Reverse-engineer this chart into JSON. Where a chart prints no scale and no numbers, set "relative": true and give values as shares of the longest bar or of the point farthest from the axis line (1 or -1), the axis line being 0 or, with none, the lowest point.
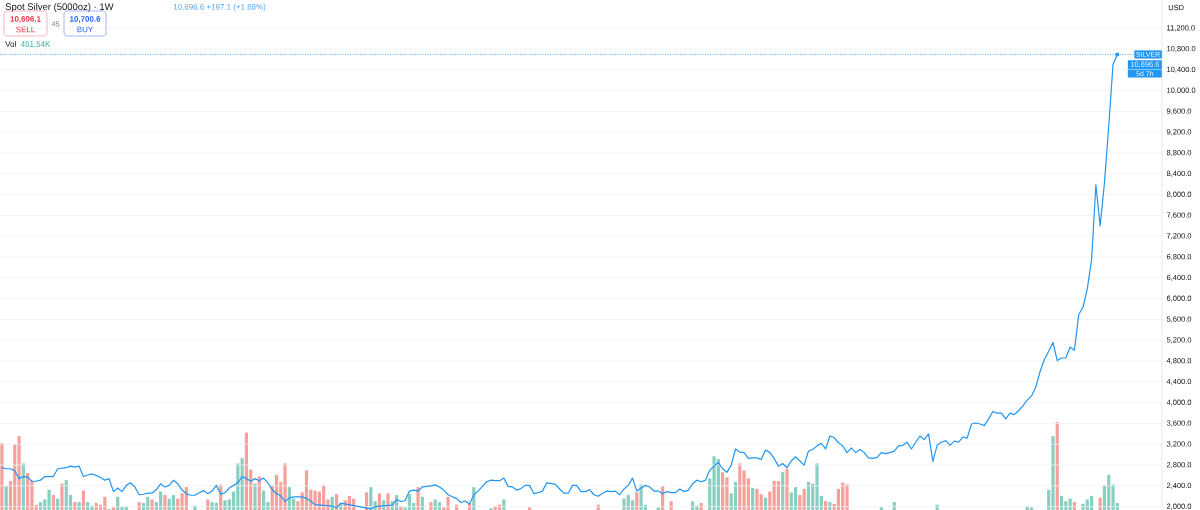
{
  "chart_data": [
    {
      "type": "line",
      "title": "Spot Silver (5000oz) · 1W",
      "subtitle": "10,696.6 +197.1 (+1.88%)",
      "annotations": [
        {
          "text": "10,696.6",
          "y": 10696.6
        },
        "5d 7h",
        "10,696.1",
        "SELL",
        "45",
        "10,700.6",
        "BUY",
        "USD"
      ],
      "color": "#2196f3",
      "categories": [
        null,
        null,
        null,
        null,
        null,
        null,
        null,
        null,
        null,
        null,
        null,
        null,
        null,
        null,
        null,
        null,
        null,
        null,
        null,
        null,
        null,
        null,
        null,
        null,
        null,
        null,
        null,
        null,
        null,
        null,
        null,
        null,
        null,
        null,
        null,
        null,
        null,
        null,
        null,
        null,
        null,
        null,
        null,
        null,
        null,
        null,
        null,
        null,
        null,
        null,
        null,
        null,
        null,
        null,
        null,
        null,
        null,
        null,
        null,
        null,
        null,
        null,
        null,
        null,
        null,
        null,
        null,
        null,
        null,
        null,
        null,
        null,
        null,
        null,
        null,
        null,
        null,
        null,
        null,
        null,
        null,
        null,
        null,
        null,
        null,
        null,
        null,
        null,
        null,
        null,
        null,
        null,
        null,
        null,
        null,
        null,
        null,
        null,
        null,
        null,
        null,
        null,
        null,
        null,
        null,
        null,
        null,
        null,
        null,
        null,
        null,
        null,
        null,
        null,
        null,
        null,
        null,
        null,
        null,
        null,
        null,
        null,
        null,
        null,
        null,
        null,
        null,
        null,
        null,
        null,
        null,
        null,
        null,
        null,
        null,
        null,
        null,
        null,
        null,
        null,
        null,
        null,
        null,
        null,
        null,
        null,
        null,
        null,
        null,
        null,
        null,
        null,
        null,
        null,
        null,
        null,
        null,
        null,
        null,
        null,
        null,
        null,
        null,
        null,
        null,
        null,
        null,
        null,
        null,
        null,
        null,
        null,
        null,
        null,
        null,
        null,
        null,
        null,
        null,
        null,
        null,
        null,
        null,
        null,
        null,
        null,
        null,
        null,
        null,
        null,
        null,
        null,
        null,
        null,
        null,
        null,
        null,
        null,
        null,
        null,
        null,
        null,
        null,
        null,
        null,
        null,
        null,
        null,
        null,
        null,
        null,
        null,
        null,
        null,
        null,
        null,
        null,
        null,
        null,
        null,
        null,
        null,
        null,
        null,
        null,
        null,
        null,
        null,
        null,
        null,
        null,
        null,
        null,
        null,
        null,
        null,
        null,
        null,
        null,
        null,
        null,
        null,
        null,
        null,
        null,
        null,
        null,
        null,
        null,
        null,
        null,
        null,
        null,
        null,
        null,
        null,
        null,
        null,
        null,
        null,
        null
      ],
      "values": [
        2750,
        2730,
        2730,
        2690,
        2540,
        2580,
        2570,
        2490,
        2490,
        2510,
        2580,
        2580,
        2580,
        2730,
        2740,
        2750,
        2780,
        2760,
        2780,
        2580,
        2610,
        2630,
        2600,
        2560,
        2510,
        2540,
        2290,
        2360,
        2290,
        2410,
        2460,
        2380,
        2230,
        2240,
        2260,
        2260,
        2330,
        2440,
        2380,
        2410,
        2510,
        2440,
        2320,
        2250,
        2220,
        2220,
        2270,
        2310,
        2250,
        2300,
        2410,
        2240,
        2270,
        2360,
        2410,
        2460,
        2580,
        2540,
        2490,
        2540,
        2500,
        2550,
        2460,
        2330,
        2250,
        2210,
        2100,
        2170,
        2190,
        2190,
        2190,
        2160,
        2110,
        2040,
        null,
        null,
        null,
        2010,
        1980,
        2070,
        null,
        null,
        null,
        null,
        null,
        null,
        1960,
        2000,
        null,
        null,
        null,
        2030,
        2140,
        2100,
        2120,
        2300,
        2320,
        2300,
        2380,
        2390,
        2400,
        2420,
        2380,
        2320,
        2230,
        2190,
        2160,
        2080,
        2110,
        2050,
        2230,
        2300,
        2390,
        2480,
        2510,
        2500,
        2500,
        2550,
        2390,
        2380,
        2320,
        2350,
        2410,
        2410,
        2250,
        2270,
        2300,
        2460,
        2450,
        2430,
        2340,
        2260,
        2260,
        2410,
        2410,
        2290,
        2290,
        2330,
        2230,
        2200,
        2260,
        2300,
        2290,
        2300,
        2230,
        2340,
        2410,
        2550,
        2300,
        2360,
        2410,
        2380,
        2300,
        2300,
        2250,
        2290,
        2270,
        2270,
        2340,
        2290,
        2320,
        2440,
        2510,
        2480,
        2510,
        2700,
        2780,
        2850,
        2730,
        2660,
        2800,
        3110,
        3050,
        3040,
        2930,
        2940,
        2940,
        2910,
        3090,
        3040,
        2930,
        2780,
        2830,
        2750,
        2880,
        2960,
        2880,
        2800,
        3070,
        3100,
        3170,
        3220,
        3110,
        3360,
        3330,
        3230,
        3170,
        3040,
        3130,
        3040,
        3100,
        3040,
        2940,
        2930,
        2950,
        3040,
        3020,
        3040,
        3070,
        3170,
        3180,
        3240,
        3110,
        3240,
        3360,
        3290,
        3400,
        2870,
        3180,
        3240,
        3270,
        3180,
        3260,
        3240,
        3340,
        3320,
        3590,
        3610,
        3590,
        3560,
        3690,
        3830,
        3800,
        3800,
        3690,
        3800,
        3770,
        3850,
        3940,
        4050,
        4130,
        4300,
        4600,
        4830,
        4990,
        5160,
        4810,
        4860,
        4860,
        5070,
        5010,
        5690,
        5840,
        6190,
        6750,
        8190,
        7400,
        8230,
        9320,
        10510,
        10696.6
      ],
      "ylim": [
        1937,
        11744
      ],
      "yticks": [
        {
          "value": 2000,
          "label": "2,000.0"
        },
        {
          "value": 2400,
          "label": "2,400.0"
        },
        {
          "value": 2800,
          "label": "2,800.0"
        },
        {
          "value": 3200,
          "label": "3,200.0"
        },
        {
          "value": 3600,
          "label": "3,600.0"
        },
        {
          "value": 4000,
          "label": "4,000.0"
        },
        {
          "value": 4400,
          "label": "4,400.0"
        },
        {
          "value": 4800,
          "label": "4,800.0"
        },
        {
          "value": 5200,
          "label": "5,200.0"
        },
        {
          "value": 5600,
          "label": "5,600.0"
        },
        {
          "value": 6000,
          "label": "6,000.0"
        },
        {
          "value": 6400,
          "label": "6,400.0"
        },
        {
          "value": 6800,
          "label": "6,800.0"
        },
        {
          "value": 7200,
          "label": "7,200.0"
        },
        {
          "value": 7600,
          "label": "7,600.0"
        },
        {
          "value": 8000,
          "label": "8,000.0"
        },
        {
          "value": 8400,
          "label": "8,400.0"
        },
        {
          "value": 8800,
          "label": "8,800.0"
        },
        {
          "value": 9200,
          "label": "9,200.0"
        },
        {
          "value": 9600,
          "label": "9,600.0"
        },
        {
          "value": 10000,
          "label": "10,000.0"
        },
        {
          "value": 10400,
          "label": "10,400.0"
        },
        {
          "value": 10800,
          "label": "10,800.0"
        },
        {
          "value": 11200,
          "label": "11,200.0"
        }
      ],
      "grid": "y",
      "tick_labels": "y",
      "ref_lines": [
        {
          "axis": "y",
          "value": 10696.6,
          "label": "SILVER",
          "color": "#2196f3",
          "line_style": "dotted"
        }
      ]
    },
    {
      "type": "bar",
      "relative": true,
      "title": "Vol",
      "annotations": [
        "451.54K"
      ],
      "categories": [
        null,
        null,
        null,
        null,
        null,
        null,
        null,
        null,
        null,
        null,
        null,
        null,
        null,
        null,
        null,
        null,
        null,
        null,
        null,
        null,
        null,
        null,
        null,
        null,
        null,
        null,
        null,
        null,
        null,
        null,
        null,
        null,
        null,
        null,
        null,
        null,
        null,
        null,
        null,
        null,
        null,
        null,
        null,
        null,
        null,
        null,
        null,
        null,
        null,
        null,
        null,
        null,
        null,
        null,
        null,
        null,
        null,
        null,
        null,
        null,
        null,
        null,
        null,
        null,
        null,
        null,
        null,
        null,
        null,
        null,
        null,
        null,
        null,
        null,
        null,
        null,
        null,
        null,
        null,
        null,
        null,
        null,
        null,
        null,
        null,
        null,
        null,
        null,
        null,
        null,
        null,
        null,
        null,
        null,
        null,
        null,
        null,
        null,
        null,
        null,
        null,
        null,
        null,
        null,
        null,
        null,
        null,
        null,
        null,
        null,
        null,
        null,
        null,
        null,
        null,
        null,
        null,
        null,
        null,
        null,
        null,
        null,
        null,
        null,
        null,
        null,
        null,
        null,
        null,
        null,
        null,
        null,
        null,
        null,
        null,
        null,
        null,
        null,
        null,
        null,
        null,
        null,
        null,
        null,
        null,
        null,
        null,
        null,
        null,
        null,
        null,
        null,
        null,
        null,
        null,
        null,
        null,
        null,
        null,
        null,
        null,
        null,
        null,
        null,
        null,
        null,
        null,
        null,
        null,
        null,
        null,
        null,
        null,
        null,
        null,
        null,
        null,
        null,
        null,
        null,
        null,
        null,
        null,
        null,
        null,
        null,
        null,
        null,
        null,
        null,
        null,
        null,
        null,
        null,
        null,
        null,
        null,
        null,
        null,
        null,
        null,
        null,
        null,
        null,
        null,
        null,
        null,
        null,
        null,
        null,
        null,
        null,
        null,
        null,
        null,
        null,
        null,
        null,
        null,
        null,
        null,
        null,
        null,
        null,
        null,
        null,
        null,
        null,
        null,
        null,
        null,
        null,
        null,
        null,
        null,
        null,
        null,
        null,
        null,
        null,
        null,
        null,
        null,
        null,
        null,
        null,
        null,
        null,
        null,
        null,
        null,
        null,
        null,
        null,
        null,
        null,
        null,
        null,
        null,
        null,
        null
      ],
      "values": [
        0.76,
        0.27,
        0.33,
        0.75,
        0.84,
        0.53,
        0.42,
        0.33,
        0.06,
        0.09,
        0.12,
        0.23,
        0.17,
        0.13,
        0.3,
        0.34,
        0.17,
        0.09,
        0.09,
        0.22,
        0.09,
        0.05,
        0.08,
        0.06,
        0.15,
        0.01,
        0.03,
        0.15,
        0.04,
        0.04,
        null,
        null,
        0.09,
        0.08,
        0.15,
        0.12,
        0.09,
        0.21,
        0.17,
        0.13,
        0.17,
        0.13,
        0.19,
        0.26,
        null,
        0.05,
        null,
        null,
        0.12,
        0.09,
        0.08,
        0.29,
        0.11,
        0.12,
        0.21,
        0.53,
        0.59,
        0.88,
        0.46,
        0.3,
        0.38,
        0.22,
        0.09,
        0.28,
        0.4,
        0.32,
        0.53,
        0.26,
        0.13,
        0.1,
        0.2,
        0.45,
        0.23,
        0.22,
        0.21,
        0.28,
        0.12,
        0.15,
        0.18,
        0.08,
        0.11,
        0.16,
        0.13,
        null,
        null,
        0.2,
        0.26,
        0.1,
        0.19,
        0.11,
        0.19,
        0.1,
        0.17,
        0.04,
        0.03,
        0.18,
        0.08,
        0.26,
        0.15,
        null,
        0.09,
        0.12,
        0.09,
        0.03,
        0.15,
        null,
        0.06,
        null,
        null,
        0.07,
        0.26,
        null,
        null,
        null,
        0.02,
        0.04,
        0.06,
        0.12,
        null,
        null,
        null,
        null,
        null,
        0.03,
        null,
        null,
        null,
        null,
        null,
        null,
        null,
        null,
        null,
        null,
        null,
        null,
        null,
        null,
        null,
        0.06,
        null,
        null,
        null,
        null,
        null,
        0.13,
        0.17,
        0.11,
        0.2,
        0.29,
        0.06,
        null,
        null,
        0.03,
        0.27,
        null,
        0.1,
        null,
        null,
        null,
        null,
        0.1,
        0.05,
        0.08,
        null,
        0.36,
        0.61,
        0.58,
        0.43,
        0.37,
        0.19,
        0.32,
        0.53,
        0.45,
        0.36,
        0.25,
        0.24,
        0.18,
        0.14,
        0.21,
        0.33,
        0.33,
        0.43,
        0.47,
        0.2,
        0.26,
        0.17,
        0.24,
        0.32,
        0.3,
        0.53,
        0.16,
        0.1,
        0.09,
        0.07,
        0.24,
        0.31,
        0.29,
        null,
        null,
        null,
        null,
        null,
        null,
        null,
        0.03,
        null,
        null,
        0.09,
        null,
        null,
        null,
        null,
        null,
        null,
        null,
        null,
        null,
        0.06,
        null,
        null,
        null,
        null,
        null,
        null,
        null,
        null,
        null,
        null,
        null,
        null,
        null,
        null,
        null,
        null,
        null,
        null,
        null,
        null,
        0.04,
        0.03,
        null,
        null,
        null,
        0.23,
        0.84,
        1,
        0.16,
        0.1,
        0.13,
        0.09,
        null,
        0.07,
        0.12,
        0.16,
        null,
        0.14,
        0.28,
        0.4,
        0.29,
        0.08
      ],
      "colors": [
        "#f5a09a",
        "#89cfc1",
        "#f5a09a",
        "#f5a09a",
        "#f5a09a",
        "#89cfc1",
        "#f5a09a",
        "#f5a09a",
        "#f5a09a",
        "#89cfc1",
        "#89cfc1",
        "#89cfc1",
        "#f5a09a",
        "#89cfc1",
        "#f5a09a",
        "#89cfc1",
        "#89cfc1",
        "#f5a09a",
        "#89cfc1",
        "#f5a09a",
        "#89cfc1",
        "#89cfc1",
        "#f5a09a",
        "#f5a09a",
        "#f5a09a",
        "#89cfc1",
        "#f5a09a",
        "#89cfc1",
        "#89cfc1",
        "#89cfc1",
        null,
        null,
        "#f5a09a",
        "#89cfc1",
        "#89cfc1",
        "#f5a09a",
        "#89cfc1",
        "#89cfc1",
        "#f5a09a",
        "#89cfc1",
        "#89cfc1",
        "#f5a09a",
        "#f5a09a",
        "#f5a09a",
        null,
        "#89cfc1",
        null,
        null,
        "#f5a09a",
        "#89cfc1",
        "#89cfc1",
        "#f5a09a",
        "#89cfc1",
        "#89cfc1",
        "#89cfc1",
        "#89cfc1",
        "#89cfc1",
        "#f5a09a",
        "#f5a09a",
        "#89cfc1",
        "#f5a09a",
        "#89cfc1",
        "#89cfc1",
        "#f5a09a",
        "#f5a09a",
        "#f5a09a",
        "#f5a09a",
        "#89cfc1",
        "#89cfc1",
        "#f5a09a",
        "#f5a09a",
        "#f5a09a",
        "#f5a09a",
        "#f5a09a",
        "#f5a09a",
        "#f5a09a",
        "#f5a09a",
        "#89cfc1",
        "#f5a09a",
        "#89cfc1",
        "#f5a09a",
        "#f5a09a",
        "#f5a09a",
        null,
        null,
        "#f5a09a",
        "#89cfc1",
        "#89cfc1",
        "#f5a09a",
        "#89cfc1",
        "#f5a09a",
        "#89cfc1",
        "#89cfc1",
        "#f5a09a",
        "#89cfc1",
        "#89cfc1",
        "#89cfc1",
        "#f5a09a",
        "#89cfc1",
        null,
        "#f5a09a",
        "#89cfc1",
        "#89cfc1",
        "#f5a09a",
        "#f5a09a",
        null,
        "#f5a09a",
        null,
        null,
        "#f5a09a",
        "#89cfc1",
        null,
        null,
        null,
        "#89cfc1",
        "#f5a09a",
        "#f5a09a",
        "#89cfc1",
        null,
        null,
        null,
        null,
        null,
        "#f5a09a",
        null,
        null,
        null,
        null,
        null,
        null,
        null,
        null,
        null,
        null,
        null,
        null,
        null,
        null,
        null,
        "#f5a09a",
        null,
        null,
        null,
        null,
        null,
        "#89cfc1",
        "#89cfc1",
        "#89cfc1",
        "#f5a09a",
        "#89cfc1",
        "#89cfc1",
        null,
        null,
        "#89cfc1",
        "#f5a09a",
        null,
        "#f5a09a",
        null,
        null,
        null,
        null,
        "#89cfc1",
        "#89cfc1",
        "#f5a09a",
        null,
        "#89cfc1",
        "#89cfc1",
        "#89cfc1",
        "#f5a09a",
        "#f5a09a",
        "#89cfc1",
        "#89cfc1",
        "#f5a09a",
        "#f5a09a",
        "#f5a09a",
        "#89cfc1",
        "#f5a09a",
        "#f5a09a",
        "#89cfc1",
        "#f5a09a",
        "#f5a09a",
        "#f5a09a",
        "#89cfc1",
        "#f5a09a",
        "#89cfc1",
        "#89cfc1",
        "#f5a09a",
        "#f5a09a",
        "#89cfc1",
        "#89cfc1",
        "#89cfc1",
        "#89cfc1",
        "#f5a09a",
        "#89cfc1",
        "#f5a09a",
        "#f5a09a",
        "#f5a09a",
        "#f5a09a",
        null,
        null,
        null,
        null,
        null,
        null,
        null,
        "#89cfc1",
        null,
        null,
        "#89cfc1",
        null,
        null,
        null,
        null,
        null,
        null,
        null,
        null,
        null,
        "#89cfc1",
        null,
        null,
        null,
        null,
        null,
        null,
        null,
        null,
        null,
        null,
        null,
        null,
        null,
        null,
        null,
        null,
        null,
        null,
        null,
        null,
        "#89cfc1",
        "#89cfc1",
        null,
        null,
        null,
        "#89cfc1",
        "#89cfc1",
        "#f5a09a",
        "#89cfc1",
        "#89cfc1",
        "#89cfc1",
        "#f5a09a",
        null,
        "#89cfc1",
        "#89cfc1",
        "#89cfc1",
        null,
        "#f5a09a",
        "#89cfc1",
        "#89cfc1",
        "#89cfc1",
        "#89cfc1"
      ]
    }
  ]
}
